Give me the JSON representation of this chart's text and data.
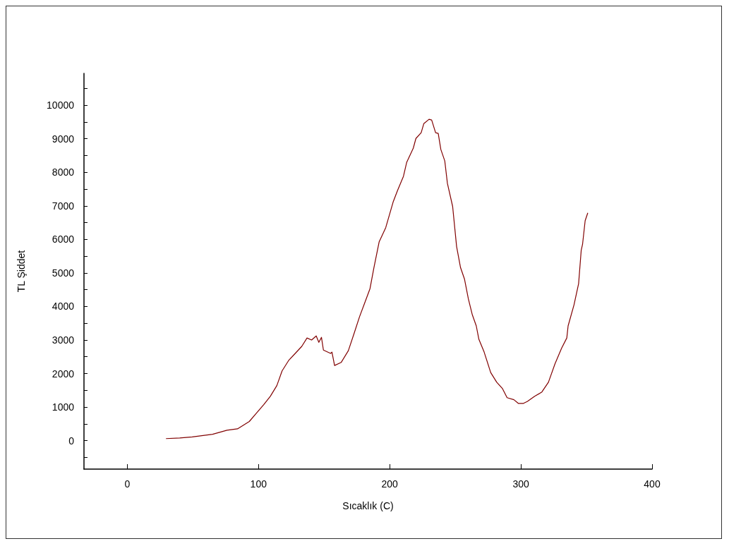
{
  "chart_data": {
    "type": "line",
    "xlabel": "Sıcaklık (C)",
    "ylabel": "TL Şiddet",
    "xlim": [
      -33,
      400
    ],
    "xticks": [
      0,
      100,
      200,
      300,
      400
    ],
    "ylim": [
      -850,
      10950
    ],
    "yticks": [
      {
        "value": -500,
        "label": null
      },
      0,
      {
        "value": 500,
        "label": null
      },
      1000,
      {
        "value": 1500,
        "label": null
      },
      2000,
      {
        "value": 2500,
        "label": null
      },
      3000,
      {
        "value": 3500,
        "label": null
      },
      4000,
      {
        "value": 4500,
        "label": null
      },
      5000,
      {
        "value": 5500,
        "label": null
      },
      6000,
      {
        "value": 6500,
        "label": null
      },
      7000,
      {
        "value": 7500,
        "label": null
      },
      8000,
      {
        "value": 8500,
        "label": null
      },
      9000,
      {
        "value": 9500,
        "label": null
      },
      10000,
      {
        "value": 10500,
        "label": null
      }
    ],
    "grid": false,
    "marker": "none",
    "line_style": "solid",
    "series": [
      {
        "color": "#800000",
        "x": [
          29.5,
          40,
          49.5,
          65,
          76,
          84,
          93,
          98,
          104,
          109,
          114,
          118,
          123,
          128,
          133,
          137,
          140.5,
          144,
          146,
          148,
          149.5,
          155,
          156,
          158,
          163,
          168.5,
          173,
          177,
          181,
          185,
          188,
          192,
          197,
          202.6,
          206,
          210.5,
          213,
          218,
          220,
          224,
          226,
          230,
          232,
          235,
          237,
          239,
          242,
          244,
          248,
          251,
          254,
          257,
          260,
          263,
          266,
          268,
          272,
          277,
          281.6,
          286,
          289.5,
          294.7,
          298,
          302,
          305,
          310.5,
          316,
          321,
          326,
          331,
          335,
          336,
          340.5,
          344,
          346,
          347,
          349,
          351
        ],
        "values": [
          60,
          80,
          110,
          190,
          310,
          350,
          570,
          800,
          1070,
          1320,
          1640,
          2080,
          2390,
          2600,
          2810,
          3060,
          3000,
          3120,
          2930,
          3080,
          2700,
          2600,
          2640,
          2240,
          2330,
          2680,
          3210,
          3690,
          4110,
          4530,
          5160,
          5930,
          6350,
          7110,
          7460,
          7880,
          8300,
          8720,
          9010,
          9180,
          9450,
          9580,
          9560,
          9180,
          9160,
          8680,
          8340,
          7670,
          6980,
          5790,
          5160,
          4820,
          4220,
          3750,
          3420,
          3020,
          2640,
          2030,
          1740,
          1550,
          1280,
          1220,
          1110,
          1110,
          1170,
          1320,
          1450,
          1740,
          2290,
          2750,
          3060,
          3420,
          4050,
          4680,
          5680,
          5850,
          6560,
          6790
        ]
      }
    ]
  }
}
